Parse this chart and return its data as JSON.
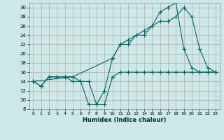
{
  "xlabel": "Humidex (Indice chaleur)",
  "bg_color": "#cce8e8",
  "grid_color": "#c0a8a8",
  "line_color": "#006666",
  "xlim": [
    -0.5,
    23.5
  ],
  "ylim": [
    8,
    31
  ],
  "yticks": [
    8,
    10,
    12,
    14,
    16,
    18,
    20,
    22,
    24,
    26,
    28,
    30
  ],
  "xticks": [
    0,
    1,
    2,
    3,
    4,
    5,
    6,
    7,
    8,
    9,
    10,
    11,
    12,
    13,
    14,
    15,
    16,
    17,
    18,
    19,
    20,
    21,
    22,
    23
  ],
  "line1_x": [
    0,
    1,
    2,
    3,
    4,
    5,
    6,
    7,
    8,
    9,
    10,
    11,
    12,
    13,
    14,
    15,
    16,
    17,
    18,
    19,
    20,
    21,
    22,
    23
  ],
  "line1_y": [
    14,
    13,
    15,
    15,
    15,
    15,
    14,
    14,
    9,
    9,
    15,
    16,
    16,
    16,
    16,
    16,
    16,
    16,
    16,
    16,
    16,
    16,
    16,
    16
  ],
  "line2_x": [
    0,
    1,
    2,
    3,
    4,
    5,
    6,
    7,
    8,
    9,
    10,
    11,
    12,
    13,
    14,
    15,
    16,
    17,
    18,
    19,
    20,
    21,
    22,
    23
  ],
  "line2_y": [
    14,
    13,
    15,
    15,
    15,
    14,
    14,
    9,
    9,
    12,
    19,
    22,
    22,
    24,
    24,
    26,
    29,
    30,
    31,
    21,
    17,
    16,
    16,
    16
  ],
  "line3_x": [
    0,
    5,
    10,
    11,
    12,
    13,
    14,
    15,
    16,
    17,
    18,
    19,
    20,
    21,
    22,
    23
  ],
  "line3_y": [
    14,
    15,
    19,
    22,
    23,
    24,
    25,
    26,
    27,
    27,
    28,
    30,
    28,
    21,
    17,
    16
  ]
}
